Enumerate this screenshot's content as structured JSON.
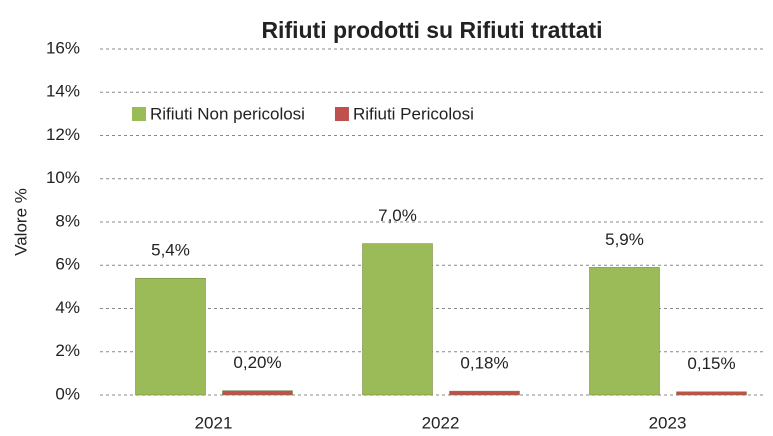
{
  "chart_data": {
    "type": "bar",
    "title": "Rifiuti prodotti su Rifiuti trattati",
    "y_label": "Valore %",
    "categories": [
      "2021",
      "2022",
      "2023"
    ],
    "series": [
      {
        "name": "Rifiuti Non pericolosi",
        "color": "#9bbb59",
        "values": [
          5.4,
          7.0,
          5.9
        ],
        "value_labels": [
          "5,4%",
          "7,0%",
          "5,9%"
        ]
      },
      {
        "name": "Rifiuti Pericolosi",
        "color": "#c0504d",
        "values": [
          0.2,
          0.18,
          0.15
        ],
        "value_labels": [
          "0,20%",
          "0,18%",
          "0,15%"
        ]
      }
    ],
    "ylim": [
      0,
      16
    ],
    "yticks": [
      {
        "value": 0,
        "label": "0%"
      },
      {
        "value": 2,
        "label": "2%"
      },
      {
        "value": 4,
        "label": "4%"
      },
      {
        "value": 6,
        "label": "6%"
      },
      {
        "value": 8,
        "label": "8%"
      },
      {
        "value": 10,
        "label": "10%"
      },
      {
        "value": 12,
        "label": "12%"
      },
      {
        "value": 14,
        "label": "14%"
      },
      {
        "value": 16,
        "label": "16%"
      }
    ],
    "grid": true,
    "legend": "top-left"
  }
}
